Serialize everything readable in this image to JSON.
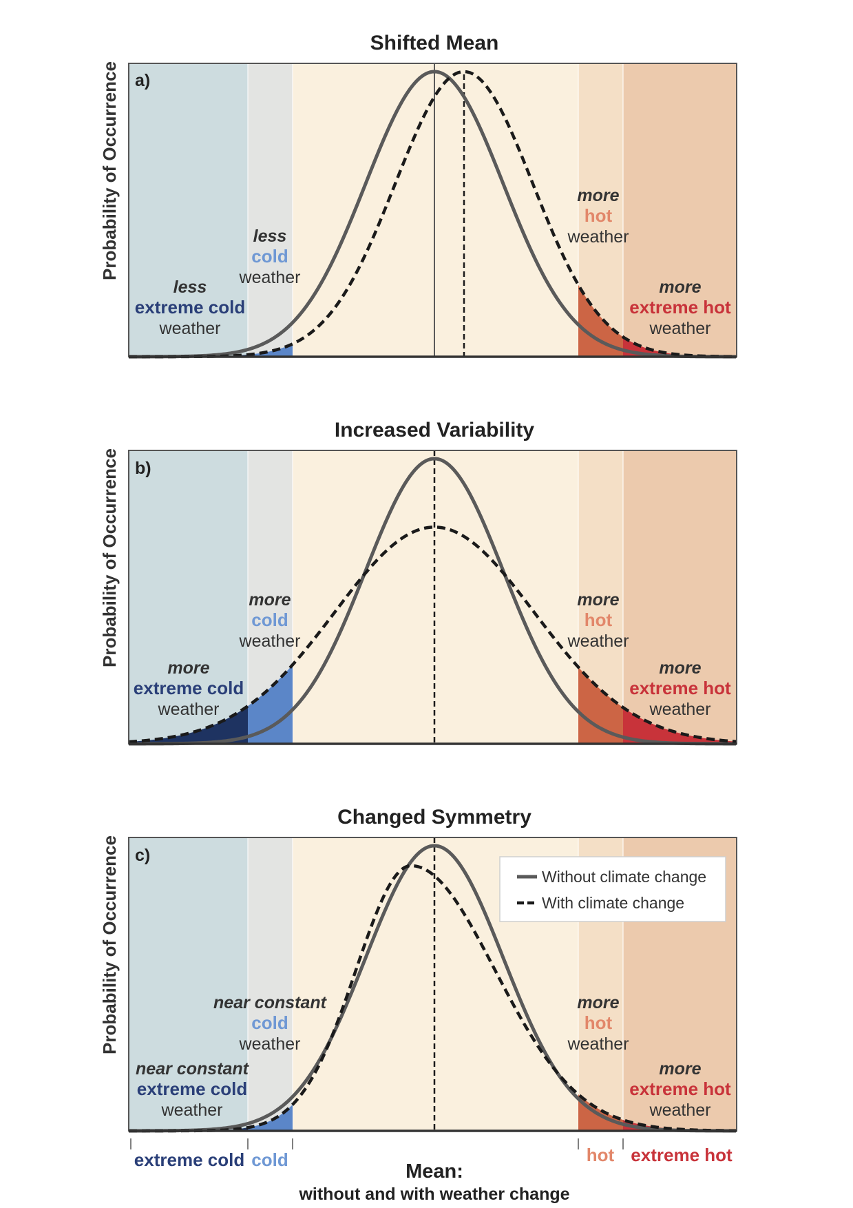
{
  "panels": [
    {
      "title": "Shifted Mean",
      "label": "a)",
      "ylabel": "Probability of Occurrence",
      "annotations": {
        "extreme_cold": {
          "mod": "less",
          "key": "extreme cold",
          "wx": "weather"
        },
        "cold": {
          "mod": "less",
          "key": "cold",
          "wx": "weather"
        },
        "hot": {
          "mod": "more",
          "key": "hot",
          "wx": "weather"
        },
        "extreme_hot": {
          "mod": "more",
          "key": "extreme hot",
          "wx": "weather"
        }
      }
    },
    {
      "title": "Increased Variability",
      "label": "b)",
      "ylabel": "Probability of Occurrence",
      "annotations": {
        "extreme_cold": {
          "mod": "more",
          "key": "extreme cold",
          "wx": "weather"
        },
        "cold": {
          "mod": "more",
          "key": "cold",
          "wx": "weather"
        },
        "hot": {
          "mod": "more",
          "key": "hot",
          "wx": "weather"
        },
        "extreme_hot": {
          "mod": "more",
          "key": "extreme hot",
          "wx": "weather"
        }
      }
    },
    {
      "title": "Changed Symmetry",
      "label": "c)",
      "ylabel": "Probability of Occurrence",
      "annotations": {
        "extreme_cold": {
          "mod": "near constant",
          "key": "extreme cold",
          "wx": "weather"
        },
        "cold": {
          "mod": "near constant",
          "key": "cold",
          "wx": "weather"
        },
        "hot": {
          "mod": "more",
          "key": "hot",
          "wx": "weather"
        },
        "extreme_hot": {
          "mod": "more",
          "key": "extreme hot",
          "wx": "weather"
        }
      }
    }
  ],
  "legend": {
    "solid": "Without climate change",
    "dashed": "With climate change"
  },
  "bottom_axis": {
    "extreme_cold": "extreme cold",
    "cold": "cold",
    "hot": "hot",
    "extreme_hot": "extreme hot",
    "mean_title": "Mean:",
    "mean_sub": "without and with weather change"
  },
  "colors": {
    "extreme_cold_zone": "#cddcdf",
    "cold_zone": "#e3e4e2",
    "center_zone": "#faf0de",
    "hot_zone": "#f4dfc6",
    "extreme_hot_zone": "#eccaad",
    "extreme_cold_fill": "#1e3361",
    "cold_fill": "#5b86c8",
    "hot_fill": "#cc6545",
    "extreme_hot_fill": "#c8333a",
    "solid_curve": "#5a5a5a",
    "dashed_curve": "#1a1a1a",
    "text_extreme_cold": "#2a3f78",
    "text_cold": "#6f98d4",
    "text_hot": "#e2876a",
    "text_extreme_hot": "#c8333a"
  }
}
